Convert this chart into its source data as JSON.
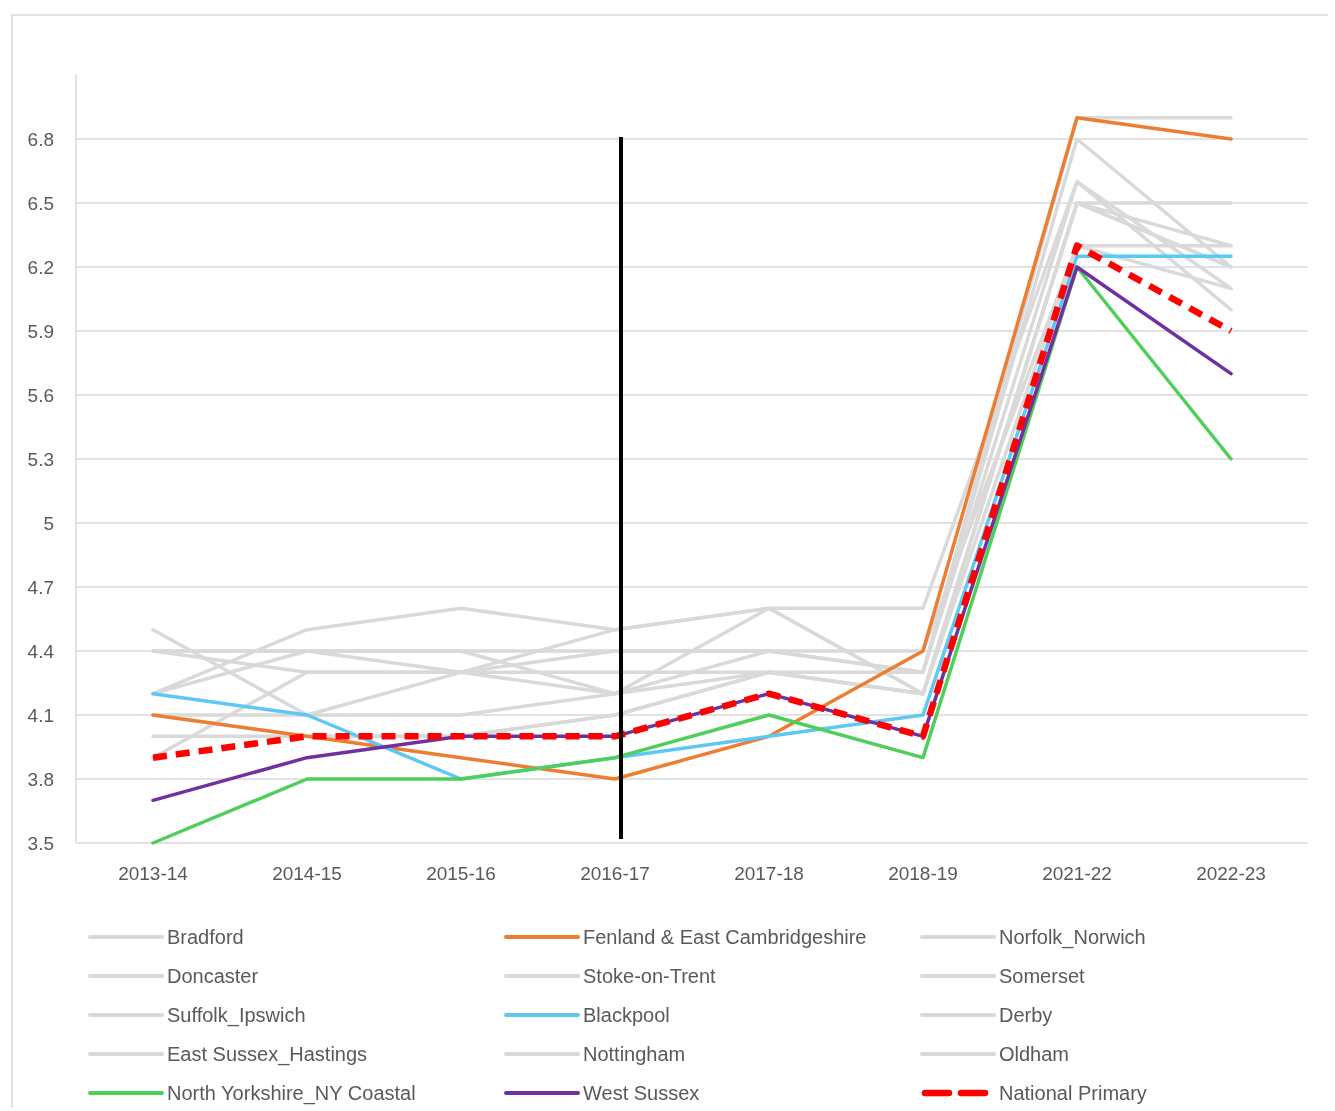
{
  "chart_data": {
    "type": "line",
    "categories": [
      "2013-14",
      "2014-15",
      "2015-16",
      "2016-17",
      "2017-18",
      "2018-19",
      "2021-22",
      "2022-23"
    ],
    "ylim": [
      3.5,
      7.1
    ],
    "yticks": [
      3.5,
      3.8,
      4.1,
      4.4,
      4.7,
      5,
      5.3,
      5.6,
      5.9,
      6.2,
      6.5,
      6.8
    ],
    "grid": "y",
    "legend": "bottom",
    "marker": "none",
    "line_style": "solid",
    "ref_lines": [
      {
        "axis": "x",
        "value": "2016-17",
        "color": "#000000"
      }
    ],
    "series": [
      {
        "name": "Bradford",
        "color": "#d9d9d9",
        "values": [
          4.2,
          4.4,
          4.4,
          4.4,
          4.4,
          4.3,
          6.9,
          6.9
        ]
      },
      {
        "name": "Fenland & East Cambridgeshire",
        "color": "#ed7d31",
        "values": [
          4.1,
          4.0,
          3.9,
          3.8,
          4.0,
          4.4,
          6.9,
          6.8
        ]
      },
      {
        "name": "Norfolk_Norwich",
        "color": "#d9d9d9",
        "values": [
          4.5,
          4.1,
          4.1,
          4.2,
          4.6,
          4.2,
          6.5,
          6.5
        ]
      },
      {
        "name": "Doncaster",
        "color": "#d9d9d9",
        "values": [
          4.4,
          4.4,
          4.3,
          4.3,
          4.3,
          4.3,
          6.8,
          6.2
        ]
      },
      {
        "name": "Stoke-on-Trent",
        "color": "#d9d9d9",
        "values": [
          4.2,
          4.5,
          4.6,
          4.5,
          4.6,
          4.6,
          6.6,
          6.1
        ]
      },
      {
        "name": "Somerset",
        "color": "#d9d9d9",
        "values": [
          4.0,
          4.0,
          4.0,
          4.1,
          4.3,
          4.2,
          6.5,
          6.3
        ]
      },
      {
        "name": "Suffolk_Ipswich",
        "color": "#d9d9d9",
        "values": [
          4.1,
          4.1,
          4.3,
          4.5,
          4.6,
          4.2,
          6.5,
          6.2
        ]
      },
      {
        "name": "Blackpool",
        "color": "#5bc8f5",
        "values": [
          4.2,
          4.1,
          3.8,
          3.9,
          4.0,
          4.1,
          6.25,
          6.25
        ]
      },
      {
        "name": "Derby",
        "color": "#d9d9d9",
        "values": [
          4.4,
          4.3,
          4.3,
          4.2,
          4.4,
          4.3,
          6.6,
          6.0
        ]
      },
      {
        "name": "East Sussex_Hastings",
        "color": "#d9d9d9",
        "values": [
          3.9,
          4.3,
          4.3,
          4.4,
          4.4,
          4.4,
          6.3,
          6.3
        ]
      },
      {
        "name": "Nottingham",
        "color": "#d9d9d9",
        "values": [
          4.1,
          4.0,
          4.0,
          4.1,
          4.3,
          4.2,
          6.5,
          6.2
        ]
      },
      {
        "name": "Oldham",
        "color": "#d9d9d9",
        "values": [
          4.4,
          4.4,
          4.4,
          4.2,
          4.3,
          4.2,
          6.3,
          6.1
        ]
      },
      {
        "name": "North Yorkshire_NY Coastal",
        "color": "#4ecf5a",
        "values": [
          3.5,
          3.8,
          3.8,
          3.9,
          4.1,
          3.9,
          6.2,
          5.3
        ]
      },
      {
        "name": "West Sussex",
        "color": "#7030a0",
        "values": [
          3.7,
          3.9,
          4.0,
          4.0,
          4.2,
          4.0,
          6.2,
          5.7
        ]
      },
      {
        "name": "National Primary",
        "color": "#ff0000",
        "line_style": "dashed",
        "values": [
          3.9,
          4.0,
          4.0,
          4.0,
          4.2,
          4.0,
          6.3,
          5.9
        ]
      }
    ]
  }
}
